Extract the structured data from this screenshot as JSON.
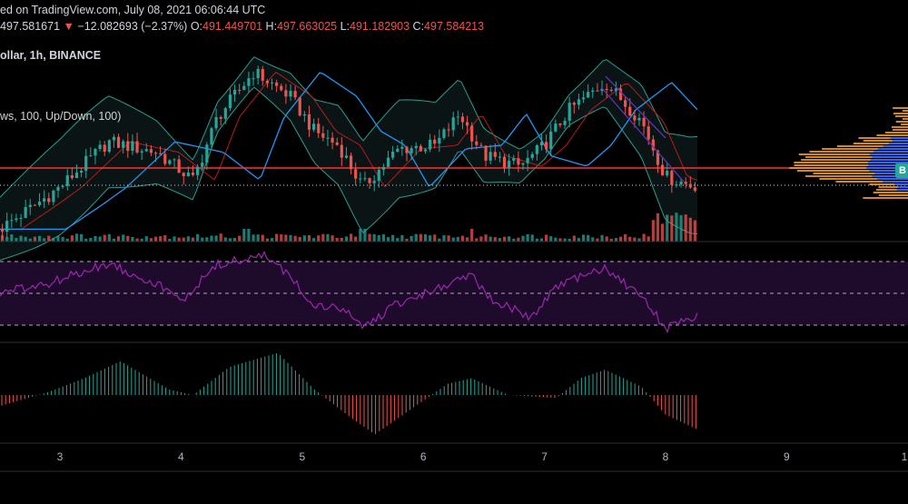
{
  "header": {
    "published": "ed on TradingView.com, July 08, 2021 06:06:44 UTC",
    "last_price": "497.581671",
    "arrow": "▼",
    "change": "−12.082693 (−2.37%)",
    "o_label": "O:",
    "o_value": "491.449701",
    "h_label": "H:",
    "h_value": "497.663025",
    "l_label": "L:",
    "l_value": "491.182903",
    "c_label": "C:",
    "c_value": "497.584213",
    "symbol": "ollar, 1h, BINANCE",
    "indicator": "ws, 100, Up/Down, 100)"
  },
  "price_tag": "B",
  "colors": {
    "up": "#26a69a",
    "down": "#ef5350",
    "rsi_line": "#9c27b0",
    "rsi_band": "#1e0a2a",
    "ma_blue": "#2196f3",
    "bb_band": "#2a9d8f",
    "bb_basis": "#b71c1c",
    "hline": "#ff3030",
    "vp_orange": "#f0a030",
    "vp_blue": "#2962ff",
    "axis_text": "#b2b5be"
  },
  "chart_data": {
    "type": "line",
    "x_axis_ticks": [
      "3",
      "4",
      "5",
      "6",
      "7",
      "8",
      "9",
      "1"
    ],
    "price_series": [
      {
        "day": 2.5,
        "close": 485
      },
      {
        "day": 2.8,
        "close": 492
      },
      {
        "day": 3.0,
        "close": 497
      },
      {
        "day": 3.4,
        "close": 510
      },
      {
        "day": 3.8,
        "close": 507
      },
      {
        "day": 4.1,
        "close": 499
      },
      {
        "day": 4.3,
        "close": 517
      },
      {
        "day": 4.6,
        "close": 530
      },
      {
        "day": 4.9,
        "close": 523
      },
      {
        "day": 5.1,
        "close": 513
      },
      {
        "day": 5.3,
        "close": 509
      },
      {
        "day": 5.5,
        "close": 497
      },
      {
        "day": 5.8,
        "close": 508
      },
      {
        "day": 6.1,
        "close": 509
      },
      {
        "day": 6.3,
        "close": 518
      },
      {
        "day": 6.5,
        "close": 506
      },
      {
        "day": 6.8,
        "close": 503
      },
      {
        "day": 7.0,
        "close": 509
      },
      {
        "day": 7.2,
        "close": 519
      },
      {
        "day": 7.5,
        "close": 527
      },
      {
        "day": 7.8,
        "close": 516
      },
      {
        "day": 8.0,
        "close": 500
      },
      {
        "day": 8.2,
        "close": 497.58
      }
    ],
    "horizontal_level": 502.5,
    "current_price": 497.58,
    "rsi_levels": [
      70,
      50,
      30
    ],
    "rsi_series": [
      {
        "day": 2.5,
        "rsi": 50
      },
      {
        "day": 2.9,
        "rsi": 56
      },
      {
        "day": 3.4,
        "rsi": 69
      },
      {
        "day": 3.8,
        "rsi": 56
      },
      {
        "day": 4.0,
        "rsi": 45
      },
      {
        "day": 4.3,
        "rsi": 68
      },
      {
        "day": 4.7,
        "rsi": 74
      },
      {
        "day": 4.9,
        "rsi": 60
      },
      {
        "day": 5.1,
        "rsi": 43
      },
      {
        "day": 5.4,
        "rsi": 38
      },
      {
        "day": 5.5,
        "rsi": 28
      },
      {
        "day": 5.8,
        "rsi": 44
      },
      {
        "day": 6.2,
        "rsi": 55
      },
      {
        "day": 6.4,
        "rsi": 61
      },
      {
        "day": 6.6,
        "rsi": 44
      },
      {
        "day": 6.9,
        "rsi": 35
      },
      {
        "day": 7.1,
        "rsi": 54
      },
      {
        "day": 7.5,
        "rsi": 66
      },
      {
        "day": 7.8,
        "rsi": 48
      },
      {
        "day": 8.0,
        "rsi": 28
      },
      {
        "day": 8.1,
        "rsi": 30
      },
      {
        "day": 8.25,
        "rsi": 36
      }
    ],
    "oscillator_series": [
      {
        "day": 2.5,
        "value": -8
      },
      {
        "day": 2.9,
        "value": 2
      },
      {
        "day": 3.2,
        "value": 12
      },
      {
        "day": 3.5,
        "value": 24
      },
      {
        "day": 3.9,
        "value": 4
      },
      {
        "day": 4.1,
        "value": 0
      },
      {
        "day": 4.4,
        "value": 20
      },
      {
        "day": 4.8,
        "value": 30
      },
      {
        "day": 5.1,
        "value": 4
      },
      {
        "day": 5.4,
        "value": -16
      },
      {
        "day": 5.6,
        "value": -28
      },
      {
        "day": 5.9,
        "value": -10
      },
      {
        "day": 6.2,
        "value": 8
      },
      {
        "day": 6.4,
        "value": 12
      },
      {
        "day": 6.7,
        "value": 0
      },
      {
        "day": 7.1,
        "value": -2
      },
      {
        "day": 7.3,
        "value": 12
      },
      {
        "day": 7.5,
        "value": 18
      },
      {
        "day": 7.8,
        "value": 6
      },
      {
        "day": 8.0,
        "value": -14
      },
      {
        "day": 8.25,
        "value": -24
      }
    ],
    "grid": false
  }
}
